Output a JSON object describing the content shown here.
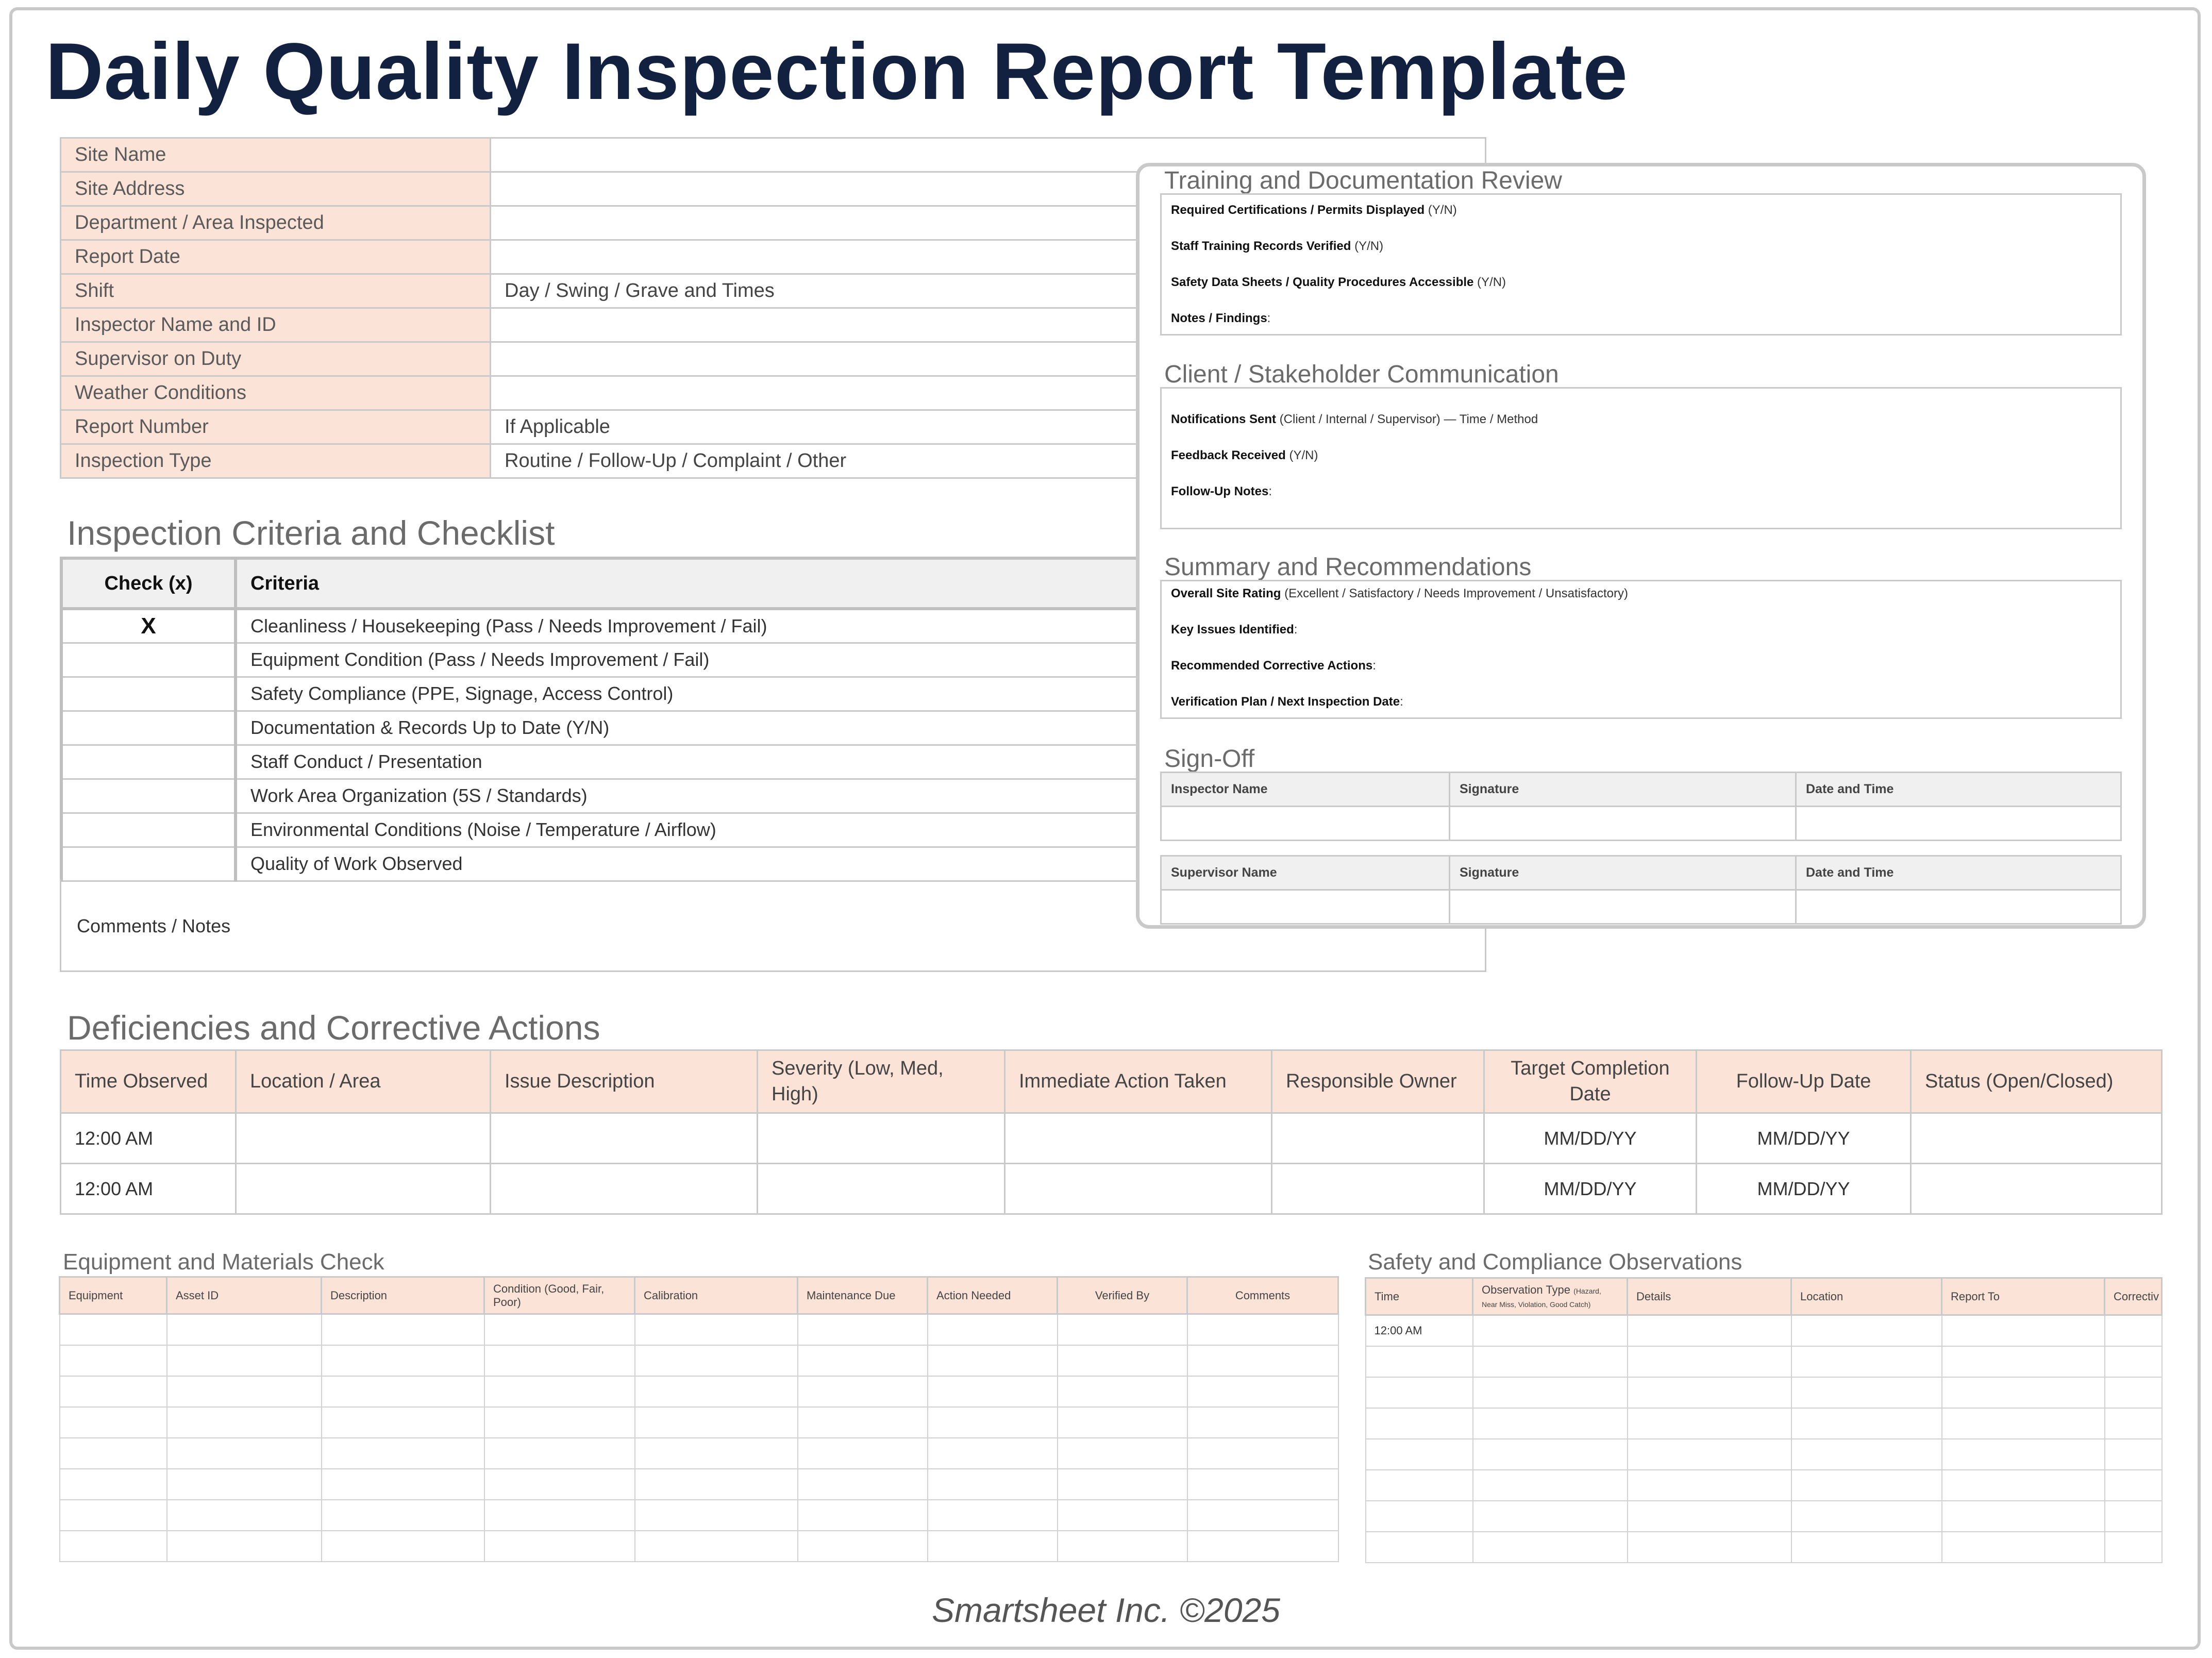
{
  "title": "Daily Quality Inspection Report Template",
  "info": [
    {
      "label": "Site Name",
      "value": ""
    },
    {
      "label": "Site Address",
      "value": ""
    },
    {
      "label": "Department / Area Inspected",
      "value": ""
    },
    {
      "label": "Report Date",
      "value": ""
    },
    {
      "label": "Shift",
      "value": "Day / Swing / Grave and Times"
    },
    {
      "label": "Inspector Name and ID",
      "value": ""
    },
    {
      "label": "Supervisor on Duty",
      "value": ""
    },
    {
      "label": "Weather Conditions",
      "value": ""
    },
    {
      "label": "Report Number",
      "value": "If Applicable"
    },
    {
      "label": "Inspection Type",
      "value": "Routine / Follow-Up / Complaint / Other"
    }
  ],
  "checklist": {
    "heading": "Inspection Criteria and Checklist",
    "col_check": "Check (x)",
    "col_criteria": "Criteria",
    "rows": [
      {
        "check": "X",
        "criteria": "Cleanliness / Housekeeping (Pass / Needs Improvement / Fail)"
      },
      {
        "check": "",
        "criteria": "Equipment Condition (Pass / Needs Improvement / Fail)"
      },
      {
        "check": "",
        "criteria": "Safety Compliance (PPE, Signage, Access Control)"
      },
      {
        "check": "",
        "criteria": "Documentation & Records Up to Date (Y/N)"
      },
      {
        "check": "",
        "criteria": "Staff Conduct / Presentation"
      },
      {
        "check": "",
        "criteria": "Work Area Organization (5S / Standards)"
      },
      {
        "check": "",
        "criteria": "Environmental Conditions (Noise / Temperature / Airflow)"
      },
      {
        "check": "",
        "criteria": "Quality of Work Observed"
      }
    ],
    "comments_label": "Comments / Notes"
  },
  "card": {
    "training": {
      "heading": "Training and Documentation Review",
      "lines": [
        {
          "bold": "Required Certifications / Permits Displayed",
          "rest": " (Y/N)"
        },
        {
          "bold": "Staff Training Records Verified",
          "rest": " (Y/N)"
        },
        {
          "bold": "Safety Data Sheets / Quality Procedures Accessible",
          "rest": " (Y/N)"
        },
        {
          "bold": "Notes / Findings",
          "rest": ":"
        }
      ]
    },
    "client": {
      "heading": "Client / Stakeholder Communication",
      "lines": [
        {
          "bold": "Notifications Sent",
          "rest": " (Client / Internal / Supervisor) — Time / Method"
        },
        {
          "bold": "Feedback Received",
          "rest": " (Y/N)"
        },
        {
          "bold": "Follow-Up Notes",
          "rest": ":"
        }
      ]
    },
    "summary": {
      "heading": "Summary and Recommendations",
      "lines": [
        {
          "bold": "Overall Site Rating",
          "rest": " (Excellent / Satisfactory / Needs Improvement / Unsatisfactory)"
        },
        {
          "bold": "Key Issues Identified",
          "rest": ":"
        },
        {
          "bold": "Recommended Corrective Actions",
          "rest": ":"
        },
        {
          "bold": "Verification Plan / Next Inspection Date",
          "rest": ":"
        }
      ]
    },
    "signoff": {
      "heading": "Sign-Off",
      "inspector_name": "Inspector Name",
      "supervisor_name": "Supervisor Name",
      "signature": "Signature",
      "date_time": "Date and Time"
    }
  },
  "deficiencies": {
    "heading": "Deficiencies and Corrective Actions",
    "headers": [
      "Time Observed",
      "Location / Area",
      "Issue Description",
      "Severity (Low, Med, High)",
      "Immediate Action Taken",
      "Responsible Owner",
      "Target Completion Date",
      "Follow-Up Date",
      "Status (Open/Closed)"
    ],
    "rows": [
      [
        "12:00 AM",
        "",
        "",
        "",
        "",
        "",
        "MM/DD/YY",
        "MM/DD/YY",
        ""
      ],
      [
        "12:00 AM",
        "",
        "",
        "",
        "",
        "",
        "MM/DD/YY",
        "MM/DD/YY",
        ""
      ]
    ]
  },
  "equipment": {
    "heading": "Equipment and Materials Check",
    "headers": [
      "Equipment",
      "Asset ID",
      "Description",
      "Condition (Good, Fair, Poor)",
      "Calibration",
      "Maintenance Due",
      "Action Needed",
      "Verified By",
      "Comments"
    ]
  },
  "safety": {
    "heading": "Safety and Compliance Observations",
    "headers": [
      "Time",
      "Observation Type",
      "Details",
      "Location",
      "Report To",
      "Correctiv"
    ],
    "observation_type_note": "(Hazard, Near Miss, Violation, Good Catch)",
    "first_time": "12:00 AM"
  },
  "footer": "Smartsheet Inc. ©2025"
}
